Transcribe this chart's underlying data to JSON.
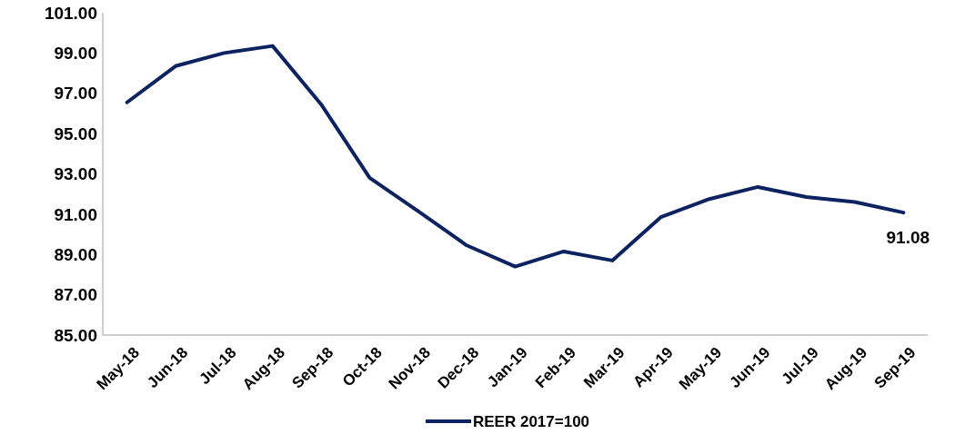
{
  "chart_data": {
    "type": "line",
    "categories": [
      "May-18",
      "Jun-18",
      "Jul-18",
      "Aug-18",
      "Sep-18",
      "Oct-18",
      "Nov-18",
      "Dec-18",
      "Jan-19",
      "Feb-19",
      "Mar-19",
      "Apr-19",
      "May-19",
      "Jun-19",
      "Jul-19",
      "Aug-19",
      "Sep-19"
    ],
    "series": [
      {
        "name": "REER 2017=100",
        "color": "#0d2260",
        "values": [
          96.55,
          98.35,
          99.0,
          99.35,
          96.45,
          92.8,
          91.15,
          89.45,
          88.4,
          89.15,
          88.7,
          90.85,
          91.75,
          92.35,
          91.85,
          91.6,
          91.08
        ],
        "value_labels": [
          null,
          null,
          null,
          null,
          null,
          null,
          null,
          null,
          null,
          null,
          null,
          null,
          null,
          null,
          null,
          null,
          "91.08"
        ]
      }
    ],
    "ylim": [
      85,
      101
    ],
    "yticks": [
      {
        "value": 85,
        "label": "85.00"
      },
      {
        "value": 87,
        "label": "87.00"
      },
      {
        "value": 89,
        "label": "89.00"
      },
      {
        "value": 91,
        "label": "91.00"
      },
      {
        "value": 93,
        "label": "93.00"
      },
      {
        "value": 95,
        "label": "95.00"
      },
      {
        "value": 97,
        "label": "97.00"
      },
      {
        "value": 99,
        "label": "99.00"
      },
      {
        "value": 101,
        "label": "101.00"
      }
    ],
    "grid": false,
    "legend": "bottom",
    "marker": "none",
    "line_style": "solid"
  }
}
